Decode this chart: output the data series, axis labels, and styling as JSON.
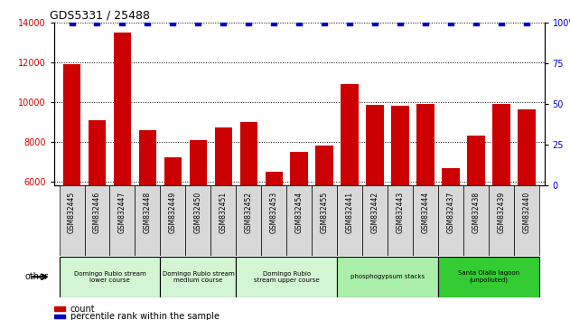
{
  "title": "GDS5331 / 25488",
  "samples": [
    "GSM832445",
    "GSM832446",
    "GSM832447",
    "GSM832448",
    "GSM832449",
    "GSM832450",
    "GSM832451",
    "GSM832452",
    "GSM832453",
    "GSM832454",
    "GSM832455",
    "GSM832441",
    "GSM832442",
    "GSM832443",
    "GSM832444",
    "GSM832437",
    "GSM832438",
    "GSM832439",
    "GSM832440"
  ],
  "counts": [
    11900,
    9100,
    13500,
    8600,
    7200,
    8100,
    8700,
    9000,
    6500,
    7500,
    7800,
    10900,
    9850,
    9800,
    9900,
    6700,
    8300,
    9900,
    9650
  ],
  "percentiles": [
    100,
    100,
    100,
    100,
    100,
    100,
    100,
    100,
    100,
    100,
    100,
    100,
    100,
    100,
    100,
    100,
    100,
    100,
    100
  ],
  "bar_color": "#cc0000",
  "dot_color": "#0000cc",
  "ylim_left": [
    5800,
    14000
  ],
  "ylim_right": [
    0,
    100
  ],
  "yticks_left": [
    6000,
    8000,
    10000,
    12000,
    14000
  ],
  "yticks_right": [
    0,
    25,
    50,
    75,
    100
  ],
  "groups": [
    {
      "label": "Domingo Rubio stream\nlower course",
      "start": 0,
      "end": 3,
      "color": "#d4f5d4"
    },
    {
      "label": "Domingo Rubio stream\nmedium course",
      "start": 4,
      "end": 6,
      "color": "#d4f5d4"
    },
    {
      "label": "Domingo Rubio\nstream upper course",
      "start": 7,
      "end": 10,
      "color": "#d4f5d4"
    },
    {
      "label": "phosphogypsum stacks",
      "start": 11,
      "end": 14,
      "color": "#aaeeaa"
    },
    {
      "label": "Santa Olalla lagoon\n(unpolluted)",
      "start": 15,
      "end": 18,
      "color": "#33cc33"
    }
  ],
  "other_label": "other",
  "legend_count_label": "count",
  "legend_pct_label": "percentile rank within the sample",
  "xticklabel_bg": "#d8d8d8",
  "spine_color": "#000000"
}
